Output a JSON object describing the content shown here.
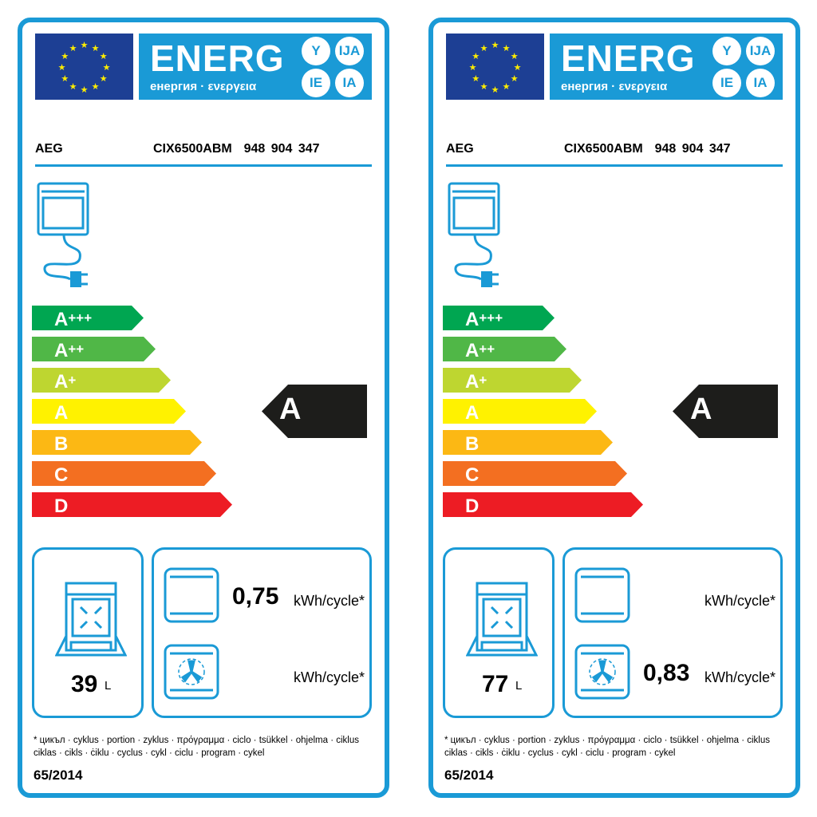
{
  "colors": {
    "border": "#1a9ad6",
    "eu_blue": "#1d3f94",
    "classes": [
      "#00a651",
      "#50b747",
      "#bed630",
      "#fff200",
      "#fcb814",
      "#f36f21",
      "#ed1c24"
    ],
    "marker": "#1d1d1b"
  },
  "labels": [
    {
      "header": {
        "energ": "ENERG",
        "subtitle": "енергия · ενεργεια",
        "suffixes": [
          "Y",
          "IJA",
          "IE",
          "IA"
        ]
      },
      "brand": "AEG",
      "model": "CIX6500ABM  948 904 347",
      "classes": [
        {
          "base": "A",
          "plus": "+++"
        },
        {
          "base": "A",
          "plus": "++"
        },
        {
          "base": "A",
          "plus": "+"
        },
        {
          "base": "A",
          "plus": ""
        },
        {
          "base": "B",
          "plus": ""
        },
        {
          "base": "C",
          "plus": ""
        },
        {
          "base": "D",
          "plus": ""
        }
      ],
      "rating": "A",
      "volume": {
        "value": "39",
        "unit": "L"
      },
      "conventional": {
        "value": "0,75",
        "unit": "kWh/cycle*"
      },
      "fan_forced": {
        "value": "",
        "unit": "kWh/cycle*"
      },
      "footnote": "* цикъл · cyklus · portion · zyklus · πρόγραμμα · ciclo · tsükkel · ohjelma · ciklus ciklas · cikls · ċiklu · cyclus · cykl · ciclu · program · cykel",
      "regulation": "65/2014"
    },
    {
      "header": {
        "energ": "ENERG",
        "subtitle": "енергия · ενεργεια",
        "suffixes": [
          "Y",
          "IJA",
          "IE",
          "IA"
        ]
      },
      "brand": "AEG",
      "model": "CIX6500ABM  948 904 347",
      "classes": [
        {
          "base": "A",
          "plus": "+++"
        },
        {
          "base": "A",
          "plus": "++"
        },
        {
          "base": "A",
          "plus": "+"
        },
        {
          "base": "A",
          "plus": ""
        },
        {
          "base": "B",
          "plus": ""
        },
        {
          "base": "C",
          "plus": ""
        },
        {
          "base": "D",
          "plus": ""
        }
      ],
      "rating": "A",
      "volume": {
        "value": "77",
        "unit": "L"
      },
      "conventional": {
        "value": "",
        "unit": "kWh/cycle*"
      },
      "fan_forced": {
        "value": "0,83",
        "unit": "kWh/cycle*"
      },
      "footnote": "* цикъл · cyklus · portion · zyklus · πρόγραμμα · ciclo · tsükkel · ohjelma · ciklus ciklas · cikls · ċiklu · cyclus · cykl · ciclu · program · cykel",
      "regulation": "65/2014"
    }
  ]
}
